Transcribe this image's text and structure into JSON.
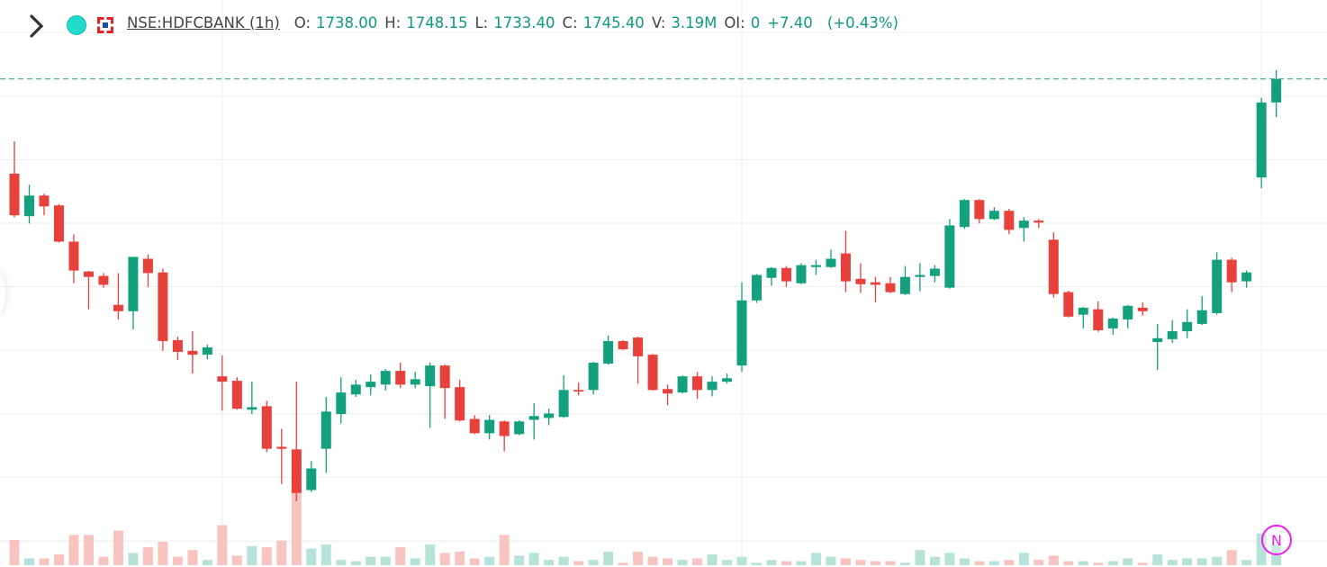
{
  "legend": {
    "symbol": "NSE:HDFCBANK (1h)",
    "o_label": "O:",
    "o_value": "1738.00",
    "h_label": "H:",
    "h_value": "1748.15",
    "l_label": "L:",
    "l_value": "1733.40",
    "c_label": "C:",
    "c_value": "1745.40",
    "v_label": "V:",
    "v_value": "3.19M",
    "oi_label": "OI:",
    "oi_value": "0",
    "change": "+7.40",
    "change_pct": "(+0.43%)"
  },
  "badge": {
    "label": "N"
  },
  "colors": {
    "up": "#13a07c",
    "down": "#e8403a",
    "vol_up": "#b6e2d7",
    "vol_down": "#f7c4c1",
    "last_price_line": "#1f9e7e",
    "grid": "#eeeeee",
    "badge": "#f21cf2"
  },
  "chart_data": {
    "type": "candlestick",
    "title": "NSE:HDFCBANK (1h)",
    "ylim": [
      1597,
      1764
    ],
    "gridlines": [
      1600,
      1620,
      1640,
      1660,
      1680,
      1700,
      1720,
      1740,
      1760
    ],
    "last_price": 1745.4,
    "candles": [
      [
        1715.6,
        1725.8,
        1701.9,
        1702.5
      ],
      [
        1702.2,
        1712.1,
        1699.9,
        1708.7
      ],
      [
        1708.7,
        1709.3,
        1702.5,
        1705.3
      ],
      [
        1705.6,
        1706.0,
        1693.9,
        1694.2
      ],
      [
        1694.2,
        1696.5,
        1681.1,
        1685.1
      ],
      [
        1684.8,
        1685.0,
        1672.9,
        1683.1
      ],
      [
        1683.4,
        1684.3,
        1679.7,
        1680.6
      ],
      [
        1674.3,
        1684.3,
        1669.7,
        1672.3
      ],
      [
        1672.3,
        1689.4,
        1666.6,
        1689.4
      ],
      [
        1688.8,
        1690.2,
        1680.0,
        1684.3
      ],
      [
        1684.5,
        1685.7,
        1659.8,
        1662.9
      ],
      [
        1663.2,
        1664.3,
        1656.9,
        1659.5
      ],
      [
        1659.8,
        1666.0,
        1652.7,
        1658.6
      ],
      [
        1658.6,
        1661.8,
        1657.2,
        1660.9
      ],
      [
        1651.8,
        1658.4,
        1641.0,
        1650.1
      ],
      [
        1650.4,
        1651.5,
        1641.3,
        1641.6
      ],
      [
        1641.3,
        1650.1,
        1639.9,
        1642.1
      ],
      [
        1642.4,
        1644.1,
        1627.9,
        1629.0
      ],
      [
        1629.6,
        1635.3,
        1617.9,
        1629.0
      ],
      [
        1628.8,
        1650.1,
        1612.5,
        1615.1
      ],
      [
        1616.0,
        1625.1,
        1615.4,
        1622.8
      ],
      [
        1629.0,
        1645.3,
        1621.4,
        1640.7
      ],
      [
        1639.9,
        1651.5,
        1637.0,
        1646.7
      ],
      [
        1646.1,
        1650.7,
        1645.3,
        1649.2
      ],
      [
        1648.4,
        1652.4,
        1645.8,
        1650.1
      ],
      [
        1649.2,
        1654.1,
        1647.3,
        1653.5
      ],
      [
        1653.5,
        1656.1,
        1648.1,
        1649.2
      ],
      [
        1649.2,
        1653.2,
        1648.1,
        1650.9
      ],
      [
        1648.7,
        1656.1,
        1635.6,
        1655.2
      ],
      [
        1655.2,
        1655.5,
        1638.4,
        1648.1
      ],
      [
        1648.4,
        1650.7,
        1637.6,
        1637.9
      ],
      [
        1638.4,
        1639.6,
        1633.6,
        1633.9
      ],
      [
        1633.9,
        1639.6,
        1631.9,
        1638.1
      ],
      [
        1637.6,
        1637.9,
        1628.2,
        1633.0
      ],
      [
        1633.6,
        1637.9,
        1633.3,
        1637.6
      ],
      [
        1638.1,
        1643.3,
        1631.9,
        1639.3
      ],
      [
        1638.7,
        1641.6,
        1636.4,
        1640.1
      ],
      [
        1639.0,
        1652.1,
        1638.7,
        1647.5
      ],
      [
        1647.5,
        1649.8,
        1645.8,
        1647.0
      ],
      [
        1647.5,
        1656.4,
        1646.1,
        1656.1
      ],
      [
        1655.8,
        1664.6,
        1655.5,
        1662.9
      ],
      [
        1662.9,
        1663.2,
        1660.1,
        1660.3
      ],
      [
        1664.0,
        1664.3,
        1649.5,
        1658.1
      ],
      [
        1658.6,
        1658.9,
        1647.3,
        1647.5
      ],
      [
        1647.8,
        1649.2,
        1642.7,
        1646.4
      ],
      [
        1646.7,
        1652.1,
        1646.4,
        1651.8
      ],
      [
        1651.8,
        1653.2,
        1644.7,
        1647.5
      ],
      [
        1647.5,
        1651.8,
        1645.5,
        1650.1
      ],
      [
        1650.1,
        1652.7,
        1649.5,
        1651.2
      ],
      [
        1655.2,
        1681.4,
        1653.2,
        1675.7
      ],
      [
        1675.7,
        1684.0,
        1674.9,
        1683.7
      ],
      [
        1682.8,
        1686.2,
        1680.3,
        1685.9
      ],
      [
        1685.9,
        1686.5,
        1680.0,
        1681.7
      ],
      [
        1681.1,
        1687.4,
        1680.8,
        1686.8
      ],
      [
        1686.2,
        1688.5,
        1683.7,
        1686.8
      ],
      [
        1686.2,
        1691.7,
        1685.9,
        1688.8
      ],
      [
        1690.5,
        1697.6,
        1678.3,
        1681.7
      ],
      [
        1682.5,
        1687.4,
        1678.0,
        1680.8
      ],
      [
        1681.4,
        1683.1,
        1675.1,
        1680.6
      ],
      [
        1681.1,
        1683.1,
        1678.0,
        1678.3
      ],
      [
        1677.7,
        1686.5,
        1677.4,
        1683.1
      ],
      [
        1683.1,
        1687.4,
        1678.6,
        1683.7
      ],
      [
        1683.4,
        1686.8,
        1681.4,
        1685.7
      ],
      [
        1679.7,
        1701.3,
        1679.4,
        1699.3
      ],
      [
        1698.8,
        1707.6,
        1698.2,
        1707.3
      ],
      [
        1707.3,
        1707.6,
        1699.9,
        1701.3
      ],
      [
        1701.3,
        1705.0,
        1701.0,
        1703.9
      ],
      [
        1703.9,
        1704.5,
        1696.5,
        1697.9
      ],
      [
        1698.5,
        1701.9,
        1694.2,
        1700.8
      ],
      [
        1700.8,
        1701.3,
        1698.5,
        1700.2
      ],
      [
        1694.8,
        1697.1,
        1676.6,
        1677.7
      ],
      [
        1678.3,
        1678.8,
        1670.3,
        1670.6
      ],
      [
        1671.2,
        1673.7,
        1666.9,
        1673.4
      ],
      [
        1672.9,
        1675.4,
        1665.8,
        1666.3
      ],
      [
        1666.9,
        1670.3,
        1664.9,
        1670.0
      ],
      [
        1669.7,
        1674.3,
        1666.9,
        1674.0
      ],
      [
        1673.4,
        1675.1,
        1670.9,
        1672.3
      ],
      [
        1662.6,
        1668.3,
        1653.8,
        1663.8
      ],
      [
        1663.5,
        1669.5,
        1662.3,
        1666.0
      ],
      [
        1666.0,
        1672.9,
        1663.8,
        1668.9
      ],
      [
        1668.3,
        1677.1,
        1668.0,
        1672.6
      ],
      [
        1671.7,
        1690.8,
        1671.2,
        1688.5
      ],
      [
        1688.5,
        1689.1,
        1678.3,
        1681.4
      ],
      [
        1681.7,
        1685.1,
        1679.7,
        1684.5
      ],
      [
        1714.4,
        1739.5,
        1711.0,
        1738.0
      ],
      [
        1738.0,
        1748.15,
        1733.4,
        1745.4
      ]
    ],
    "volumes_millions": [
      3.9,
      1.05,
      1.05,
      1.67,
      4.67,
      4.67,
      1.29,
      5.33,
      1.9,
      2.76,
      3.62,
      1.29,
      2.33,
      0.81,
      6.19,
      1.48,
      2.95,
      2.76,
      3.81,
      17.0,
      2.57,
      3.19,
      0.81,
      0.62,
      1.29,
      1.29,
      2.76,
      1.05,
      3.19,
      1.9,
      2.1,
      1.05,
      1.29,
      4.67,
      1.48,
      1.9,
      0.81,
      1.29,
      0.62,
      0.81,
      2.1,
      0.38,
      2.1,
      1.29,
      1.05,
      0.81,
      1.05,
      1.67,
      0.81,
      1.29,
      0.38,
      0.81,
      0.62,
      0.62,
      1.9,
      1.29,
      1.05,
      0.81,
      0.62,
      0.62,
      0.38,
      2.33,
      1.29,
      1.9,
      1.05,
      0.62,
      0.62,
      0.81,
      1.9,
      0.81,
      1.48,
      0.62,
      0.62,
      0.38,
      0.62,
      1.05,
      0.38,
      1.67,
      0.81,
      1.05,
      1.05,
      1.29,
      2.33,
      0.81,
      4.9,
      3.19
    ],
    "session_breaks": [
      14,
      49,
      84
    ]
  }
}
